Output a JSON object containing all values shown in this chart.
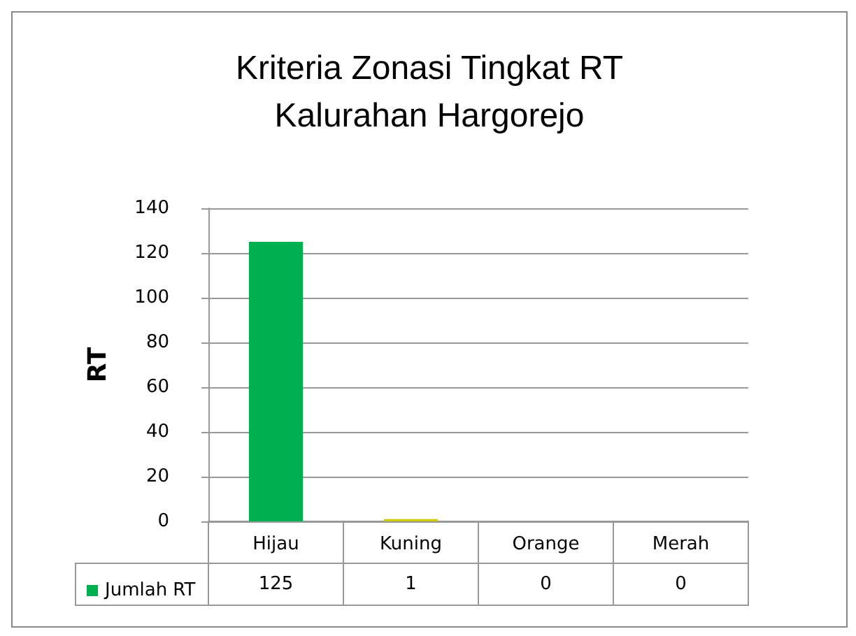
{
  "chart_data": {
    "type": "bar",
    "title": "Kriteria Zonasi Tingkat RT\nKalurahan Hargorejo",
    "ylabel": "RT",
    "categories": [
      "Hijau",
      "Kuning",
      "Orange",
      "Merah"
    ],
    "series": [
      {
        "name": "Jumlah RT",
        "values": [
          125,
          1,
          0,
          0
        ]
      }
    ],
    "colors": [
      "#00b050",
      "#cccc00",
      "#c07038",
      "#c00000"
    ],
    "ylim": [
      0,
      140
    ],
    "yticks": [
      0,
      20,
      40,
      60,
      80,
      100,
      120,
      140
    ],
    "grid": "y",
    "legend": "bottom left",
    "data_labels": true
  }
}
